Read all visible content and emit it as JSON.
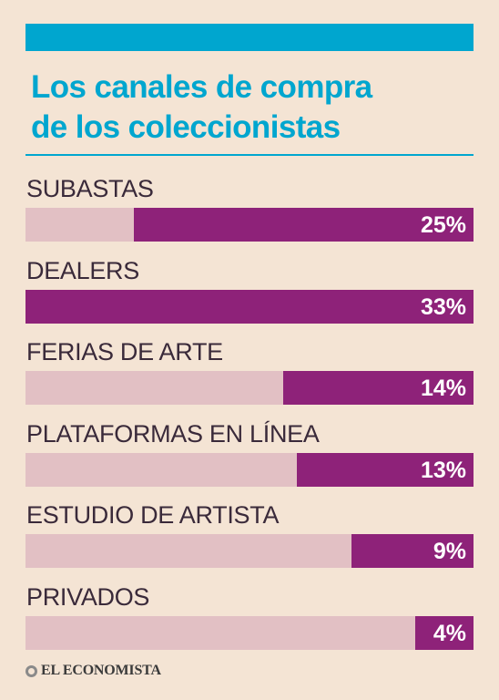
{
  "header": {
    "title_line1": "Los canales de compra",
    "title_line2": "de los coleccionistas",
    "band_color": "#00a6cf"
  },
  "chart_data": {
    "type": "bar",
    "orientation": "horizontal",
    "categories": [
      "SUBASTAS",
      "DEALERS",
      "FERIAS DE ARTE",
      "PLATAFORMAS EN LÍNEA",
      "ESTUDIO DE ARTISTA",
      "PRIVADOS"
    ],
    "values": [
      25,
      33,
      14,
      13,
      9,
      4
    ],
    "value_labels": [
      "25%",
      "33%",
      "14%",
      "13%",
      "9%",
      "4%"
    ],
    "title": "Los canales de compra de los coleccionistas",
    "xlim": [
      0,
      33
    ],
    "grid": false,
    "bar_color": "#8e2279",
    "track_color": "#e2c0c4"
  },
  "footer": {
    "brand": "EL ECONOMISTA",
    "logo_icon": "globe-icon"
  }
}
